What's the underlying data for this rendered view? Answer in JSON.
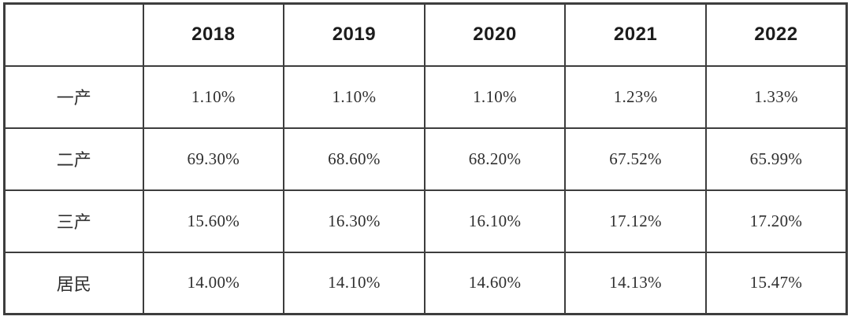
{
  "table": {
    "columns": [
      "",
      "2018",
      "2019",
      "2020",
      "2021",
      "2022"
    ],
    "rows": [
      {
        "label": "一产",
        "values": [
          "1.10%",
          "1.10%",
          "1.10%",
          "1.23%",
          "1.33%"
        ]
      },
      {
        "label": "二产",
        "values": [
          "69.30%",
          "68.60%",
          "68.20%",
          "67.52%",
          "65.99%"
        ]
      },
      {
        "label": "三产",
        "values": [
          "15.60%",
          "16.30%",
          "16.10%",
          "17.12%",
          "17.20%"
        ]
      },
      {
        "label": "居民",
        "values": [
          "14.00%",
          "14.10%",
          "14.60%",
          "14.13%",
          "15.47%"
        ]
      }
    ]
  },
  "chart_data": {
    "type": "table",
    "title": "",
    "categories": [
      "2018",
      "2019",
      "2020",
      "2021",
      "2022"
    ],
    "series": [
      {
        "name": "一产",
        "values": [
          1.1,
          1.1,
          1.1,
          1.23,
          1.33
        ]
      },
      {
        "name": "二产",
        "values": [
          69.3,
          68.6,
          68.2,
          67.52,
          65.99
        ]
      },
      {
        "name": "三产",
        "values": [
          15.6,
          16.3,
          16.1,
          17.12,
          17.2
        ]
      },
      {
        "name": "居民",
        "values": [
          14.0,
          14.1,
          14.6,
          14.13,
          15.47
        ]
      }
    ],
    "unit": "%",
    "colors": {
      "border": "#3d3d3d",
      "header_text": "#1c1c1c",
      "cell_text": "#2f2f2f",
      "background": "#ffffff"
    }
  }
}
